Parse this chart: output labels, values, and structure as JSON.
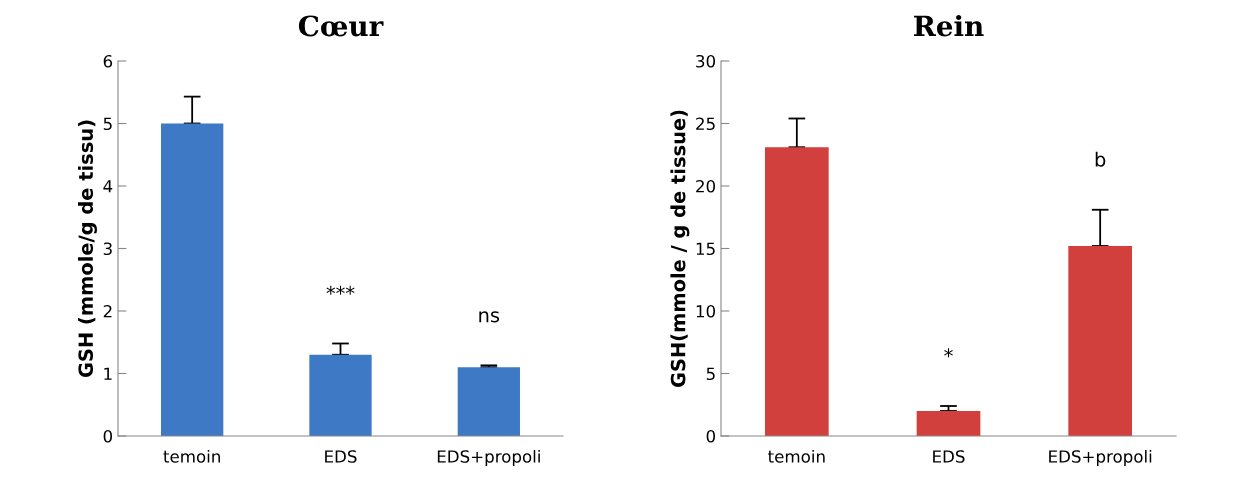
{
  "chart_data": [
    {
      "type": "bar",
      "title": "Cœur",
      "ylabel": "GSH (mmole/g de tissu)",
      "categories": [
        "temoin",
        "EDS",
        "EDS+propoli"
      ],
      "values": [
        5.0,
        1.3,
        1.1
      ],
      "errors": [
        [
          5.0,
          5.43
        ],
        [
          1.3,
          1.48
        ],
        [
          1.1,
          1.13
        ]
      ],
      "color": "#3d79c4",
      "ylim": [
        0,
        6
      ],
      "yticks": [
        0,
        1,
        2,
        3,
        4,
        5,
        6
      ],
      "grid": false,
      "annotations": [
        "***",
        "ns"
      ]
    },
    {
      "type": "bar",
      "title": "Rein",
      "ylabel": "GSH(mmole / g de tissue)",
      "categories": [
        "temoin",
        "EDS",
        "EDS+propoli"
      ],
      "values": [
        23.1,
        2.0,
        15.2
      ],
      "errors": [
        [
          23.1,
          25.4
        ],
        [
          2.0,
          2.4
        ],
        [
          15.2,
          18.1
        ]
      ],
      "color": "#d2403e",
      "ylim": [
        0,
        30
      ],
      "yticks": [
        0,
        5,
        10,
        15,
        20,
        25,
        30
      ],
      "grid": false,
      "annotations": [
        "*",
        "b"
      ]
    }
  ]
}
